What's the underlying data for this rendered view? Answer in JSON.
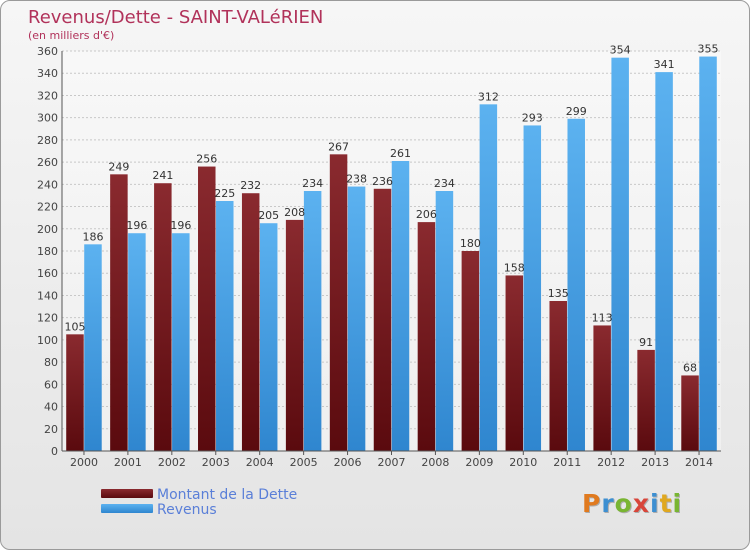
{
  "header": {
    "title": "Revenus/Dette - SAINT-VALéRIEN",
    "subtitle": "(en milliers d'€)"
  },
  "chart_data": {
    "type": "bar",
    "title": "Revenus/Dette - SAINT-VALéRIEN",
    "subtitle": "(en milliers d'€)",
    "categories": [
      "2000",
      "2001",
      "2002",
      "2003",
      "2004",
      "2005",
      "2006",
      "2007",
      "2008",
      "2009",
      "2010",
      "2011",
      "2012",
      "2013",
      "2014"
    ],
    "series": [
      {
        "name": "Montant de la Dette",
        "color": "#7a1d22",
        "values": [
          105,
          249,
          241,
          256,
          232,
          208,
          267,
          236,
          206,
          180,
          158,
          135,
          113,
          91,
          68
        ]
      },
      {
        "name": "Revenus",
        "color": "#4aa3e8",
        "values": [
          186,
          196,
          196,
          225,
          205,
          234,
          238,
          261,
          234,
          312,
          293,
          299,
          354,
          341,
          355
        ]
      }
    ],
    "ylim": [
      0,
      360
    ],
    "yticks": [
      0,
      20,
      40,
      60,
      80,
      100,
      120,
      140,
      160,
      180,
      200,
      220,
      240,
      260,
      280,
      300,
      320,
      340,
      360
    ],
    "grid": true,
    "legend_position": "bottom-left"
  },
  "legend": {
    "items": [
      {
        "label": "Montant de la Dette",
        "color": "#7a1d22"
      },
      {
        "label": "Revenus",
        "color": "#4aa3e8"
      }
    ]
  },
  "logo": {
    "text": "Proxiti",
    "letters": [
      {
        "ch": "P",
        "color": "#e07a1f"
      },
      {
        "ch": "r",
        "color": "#3d8fd1"
      },
      {
        "ch": "o",
        "color": "#79b532"
      },
      {
        "ch": "x",
        "color": "#d8453a"
      },
      {
        "ch": "i",
        "color": "#3d8fd1"
      },
      {
        "ch": "t",
        "color": "#e0a81f"
      },
      {
        "ch": "i",
        "color": "#79b532"
      }
    ]
  }
}
